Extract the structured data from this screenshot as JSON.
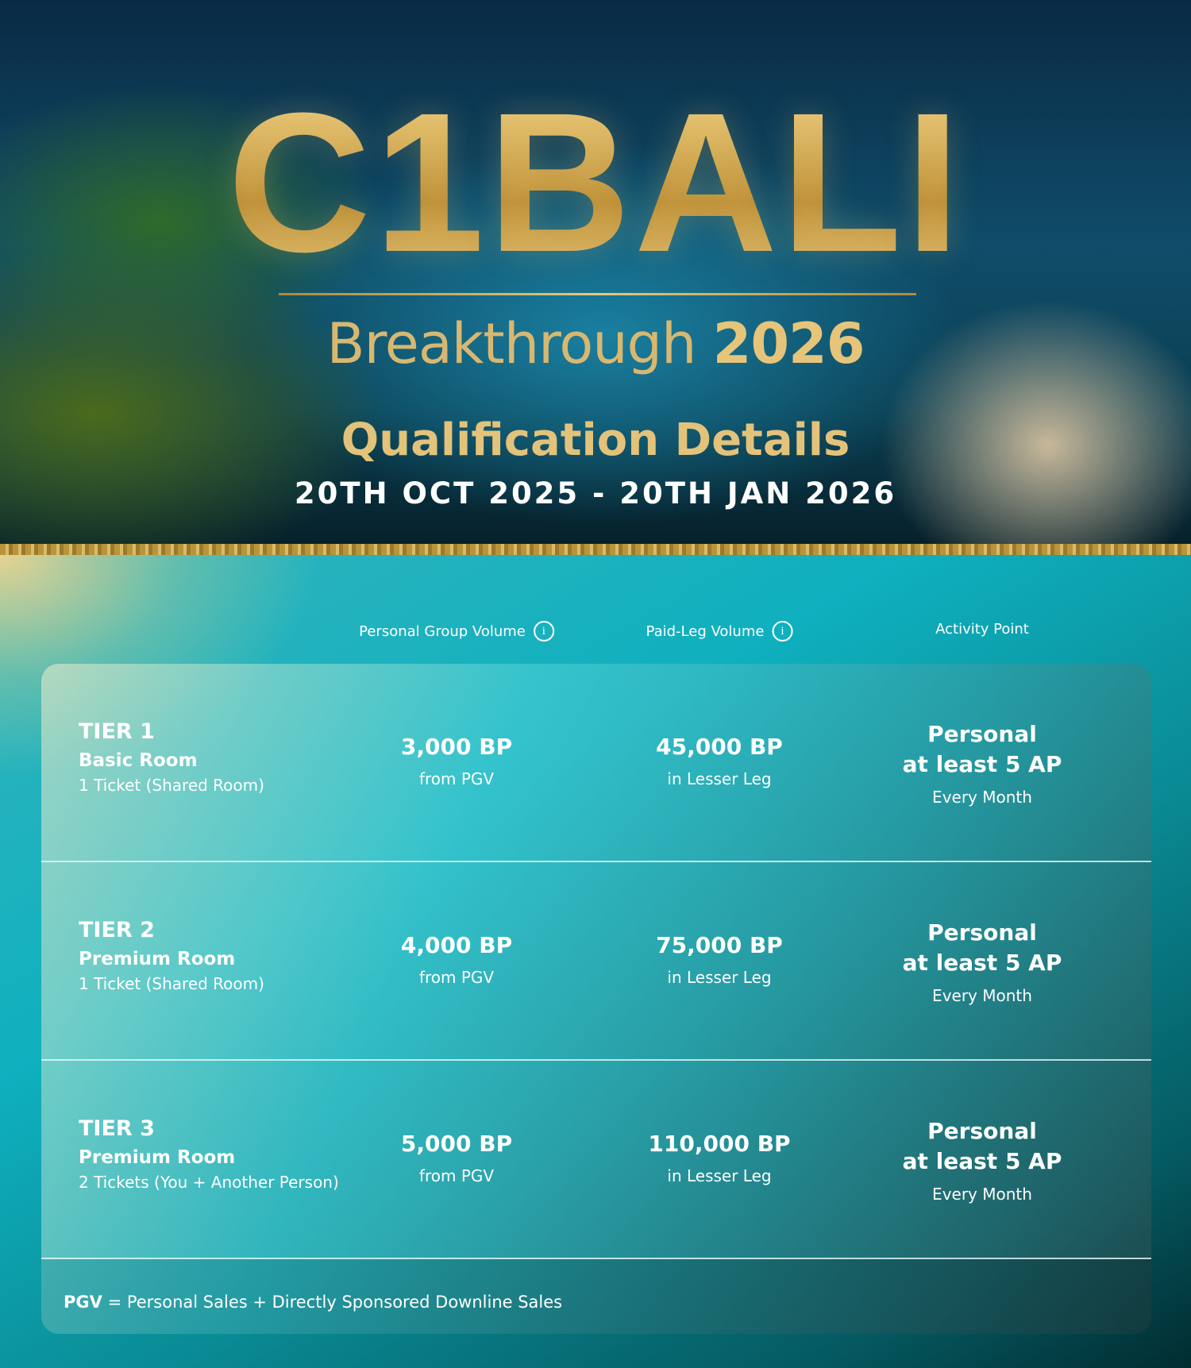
{
  "hero": {
    "logo": "C1BALI",
    "subtitle_word": "Breakthrough",
    "subtitle_year": "2026",
    "title": "Qualification Details",
    "dates": "20TH OCT 2025 - 20TH JAN 2026"
  },
  "columns": [
    {
      "label": "Personal Group Volume",
      "icon": "info-icon"
    },
    {
      "label": "Paid-Leg Volume",
      "icon": "info-icon"
    },
    {
      "label": "Activity Point"
    }
  ],
  "tiers": [
    {
      "tier": "TIER 1",
      "room": "Basic Room",
      "tickets": "1 Ticket (Shared Room)",
      "pgv": "3,000 BP",
      "pgv_sub": "from PGV",
      "leg": "45,000 BP",
      "leg_sub": "in Lesser Leg",
      "ap_line1": "Personal",
      "ap_line2": "at least 5 AP",
      "ap_sub": "Every Month"
    },
    {
      "tier": "TIER 2",
      "room": "Premium Room",
      "tickets": "1 Ticket (Shared Room)",
      "pgv": "4,000 BP",
      "pgv_sub": "from PGV",
      "leg": "75,000 BP",
      "leg_sub": "in Lesser Leg",
      "ap_line1": "Personal",
      "ap_line2": "at least 5 AP",
      "ap_sub": "Every Month"
    },
    {
      "tier": "TIER 3",
      "room": "Premium Room",
      "tickets": "2 Tickets (You + Another Person)",
      "pgv": "5,000 BP",
      "pgv_sub": "from PGV",
      "leg": "110,000 BP",
      "leg_sub": "in Lesser Leg",
      "ap_line1": "Personal",
      "ap_line2": "at least 5 AP",
      "ap_sub": "Every Month"
    }
  ],
  "footnote": {
    "term": "PGV",
    "definition": " = Personal Sales + Directly Sponsored Downline Sales"
  },
  "colors": {
    "gold": "#d9b45e",
    "teal": "#0fb0bf"
  }
}
